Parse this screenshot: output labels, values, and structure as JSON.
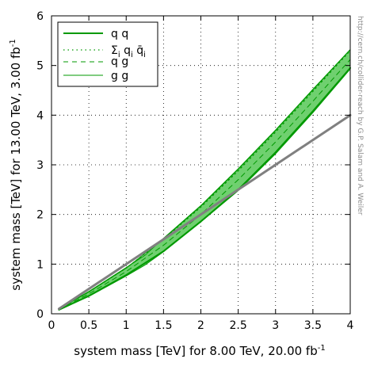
{
  "chart_data": {
    "type": "line",
    "xlabel": {
      "text": "system mass [TeV] for 8.00 TeV, 20.00 fb",
      "sup": "-1"
    },
    "ylabel": {
      "text": "system mass [TeV] for 13.00 TeV, 3.00 fb",
      "sup": "-1"
    },
    "xlim": [
      0,
      4
    ],
    "ylim": [
      0,
      6
    ],
    "xticks": [
      0,
      0.5,
      1,
      1.5,
      2,
      2.5,
      3,
      3.5,
      4
    ],
    "xtick_labels": [
      "0",
      "0.5",
      "1",
      "1.5",
      "2",
      "2.5",
      "3",
      "3.5",
      "4"
    ],
    "yticks": [
      0,
      1,
      2,
      3,
      4,
      5,
      6
    ],
    "ytick_labels": [
      "0",
      "1",
      "2",
      "3",
      "4",
      "5",
      "6"
    ],
    "grid": true,
    "legend_position": "top-left",
    "credit": "http://cern.ch/collider-reach by G.P. Salam and A. Weiler",
    "band": {
      "color": "#6fd06f",
      "x": [
        0.1,
        0.5,
        1.0,
        1.25,
        1.5,
        2.0,
        2.5,
        3.0,
        3.5,
        4.0
      ],
      "upper": [
        0.1,
        0.45,
        0.93,
        1.18,
        1.52,
        2.18,
        2.92,
        3.7,
        4.52,
        5.32
      ],
      "lower": [
        0.08,
        0.35,
        0.76,
        0.98,
        1.25,
        1.85,
        2.48,
        3.22,
        4.05,
        4.93
      ]
    },
    "series": [
      {
        "name": "q q",
        "style": "solid",
        "color": "#009900",
        "width": 2.0,
        "x": [
          0.1,
          0.5,
          1.0,
          1.5,
          2.0,
          2.5,
          3.0,
          3.5,
          4.0
        ],
        "y": [
          0.08,
          0.36,
          0.78,
          1.26,
          1.86,
          2.5,
          3.25,
          4.08,
          4.95
        ]
      },
      {
        "name": "Σ",
        "name_parts": {
          "sigma": "Σ",
          "i": "i",
          "q": " q",
          "qbar": " q̄"
        },
        "style": "dotted",
        "color": "#009900",
        "width": 1.3,
        "x": [
          0.1,
          0.5,
          1.0,
          1.5,
          2.0,
          2.5,
          3.0,
          3.5,
          4.0
        ],
        "y": [
          0.1,
          0.44,
          0.92,
          1.5,
          2.15,
          2.88,
          3.66,
          4.48,
          5.3
        ]
      },
      {
        "name": "q g",
        "style": "dashed",
        "color": "#009900",
        "width": 1.0,
        "x": [
          0.1,
          0.5,
          1.0,
          1.5,
          2.0,
          2.5,
          3.0,
          3.5,
          4.0
        ],
        "y": [
          0.09,
          0.4,
          0.85,
          1.38,
          2.0,
          2.7,
          3.46,
          4.28,
          5.12
        ]
      },
      {
        "name": "g g",
        "style": "solid",
        "color": "#009900",
        "width": 1.0,
        "x": [
          0.1,
          0.5,
          1.0,
          1.5,
          2.0,
          2.5,
          3.0,
          3.5,
          4.0
        ],
        "y": [
          0.1,
          0.44,
          0.92,
          1.51,
          2.17,
          2.91,
          3.69,
          4.51,
          5.32
        ]
      },
      {
        "style": "solid",
        "color": "#808080",
        "width": 3.0,
        "x": [
          0.1,
          4.0
        ],
        "y": [
          0.1,
          4.0
        ]
      }
    ]
  }
}
